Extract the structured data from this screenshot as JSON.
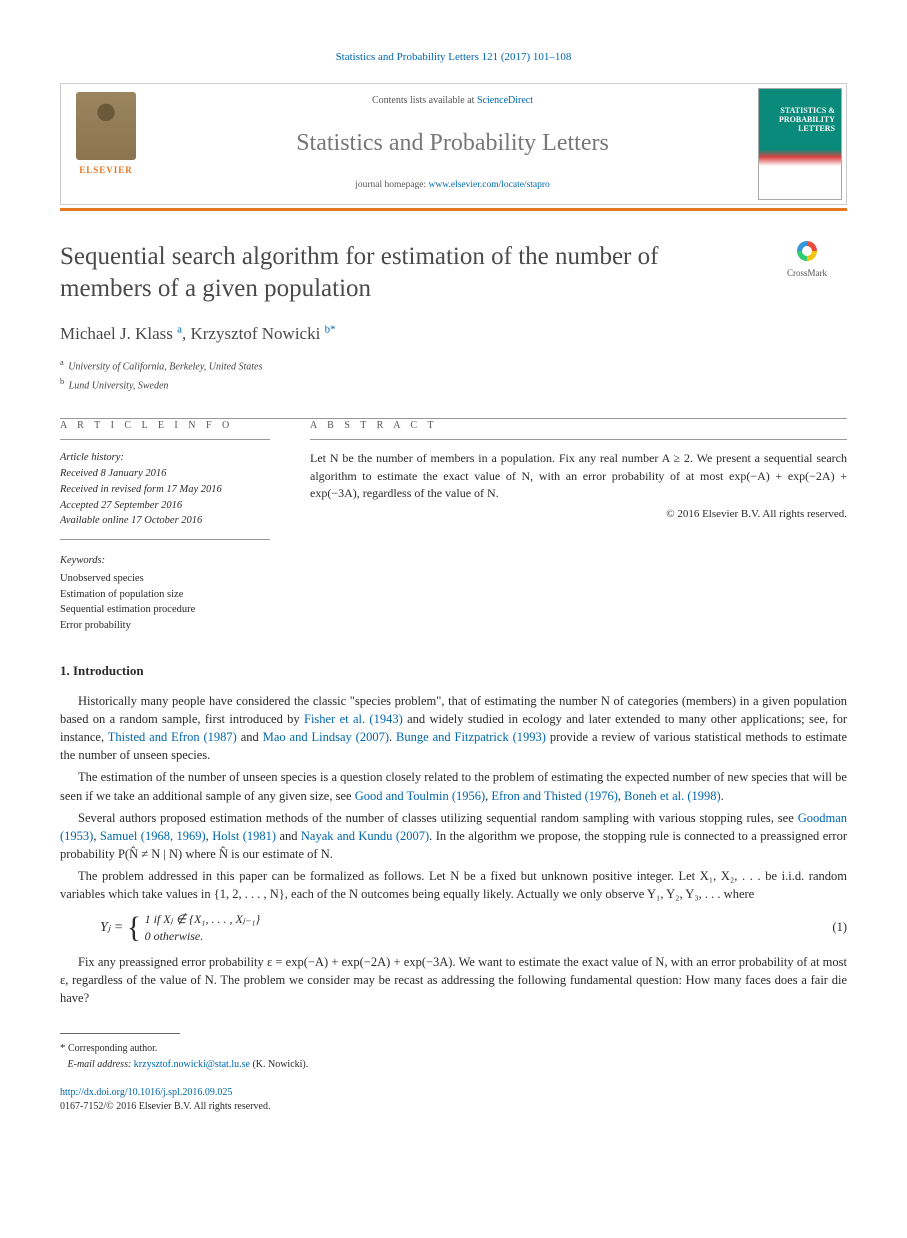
{
  "citation": "Statistics and Probability Letters 121 (2017) 101–108",
  "masthead": {
    "contents_prefix": "Contents lists available at ",
    "contents_link": "ScienceDirect",
    "journal_name": "Statistics and Probability Letters",
    "homepage_prefix": "journal homepage: ",
    "homepage_link": "www.elsevier.com/locate/stapro",
    "publisher": "ELSEVIER",
    "cover_title": "STATISTICS & PROBABILITY LETTERS"
  },
  "title": "Sequential search algorithm for estimation of the number of members of a given population",
  "crossmark_label": "CrossMark",
  "authors": {
    "a1_name": "Michael J. Klass",
    "a1_aff": "a",
    "a2_name": "Krzysztof Nowicki",
    "a2_aff": "b",
    "corr_mark": "*"
  },
  "affiliations": {
    "a": "University of California, Berkeley, United States",
    "b": "Lund University, Sweden"
  },
  "info": {
    "heading": "A R T I C L E   I N F O",
    "history_label": "Article history:",
    "h1": "Received 8 January 2016",
    "h2": "Received in revised form 17 May 2016",
    "h3": "Accepted 27 September 2016",
    "h4": "Available online 17 October 2016",
    "keywords_label": "Keywords:",
    "k1": "Unobserved species",
    "k2": "Estimation of population size",
    "k3": "Sequential estimation procedure",
    "k4": "Error probability"
  },
  "abstract": {
    "heading": "A B S T R A C T",
    "text": "Let N be the number of members in a population. Fix any real number A ≥ 2. We present a sequential search algorithm to estimate the exact value of N, with an error probability of at most exp(−A) + exp(−2A) + exp(−3A), regardless of the value of N.",
    "copyright": "© 2016 Elsevier B.V. All rights reserved."
  },
  "section1_heading": "1. Introduction",
  "para1_a": "Historically many people have considered the classic \"species problem\", that of estimating the number N of categories (members) in a given population based on a random sample, first introduced by ",
  "para1_ref1": "Fisher et al. (1943)",
  "para1_b": " and widely studied in ecology and later extended to many other applications; see, for instance, ",
  "para1_ref2": "Thisted and Efron (1987)",
  "para1_c": " and ",
  "para1_ref3": "Mao and Lindsay (2007)",
  "para1_d": ". ",
  "para1_ref4": "Bunge and Fitzpatrick (1993)",
  "para1_e": " provide a review of various statistical methods to estimate the number of unseen species.",
  "para2_a": "The estimation of the number of unseen species is a question closely related to the problem of estimating the expected number of new species that will be seen if we take an additional sample of any given size, see ",
  "para2_ref1": "Good and Toulmin (1956)",
  "para2_b": ", ",
  "para2_ref2": "Efron and Thisted (1976)",
  "para2_c": ", ",
  "para2_ref3": "Boneh et al. (1998)",
  "para2_d": ".",
  "para3_a": "Several authors proposed estimation methods of the number of classes utilizing sequential random sampling with various stopping rules, see ",
  "para3_ref1": "Goodman (1953)",
  "para3_b": ", ",
  "para3_ref2": "Samuel (1968, 1969)",
  "para3_c": ", ",
  "para3_ref3": "Holst (1981)",
  "para3_d": " and ",
  "para3_ref4": "Nayak and Kundu (2007)",
  "para3_e": ". In the algorithm we propose, the stopping rule is connected to a preassigned error probability P(N̂ ≠ N | N) where N̂ is our estimate of N.",
  "para4": "The problem addressed in this paper can be formalized as follows. Let N be a fixed but unknown positive integer. Let X₁, X₂, . . . be i.i.d. random variables which take values in {1, 2, . . . , N}, each of the N outcomes being equally likely. Actually we only observe Y₁, Y₂, Y₃, . . . where",
  "eq1_lhs": "Yⱼ =",
  "eq1_case1": "1    if Xⱼ ∉ {X₁, . . . , Xⱼ₋₁}",
  "eq1_case2": "0    otherwise.",
  "eq1_num": "(1)",
  "para5": "Fix any preassigned error probability ε = exp(−A) + exp(−2A) + exp(−3A). We want to estimate the exact value of N, with an error probability of at most ε, regardless of the value of N. The problem we consider may be recast as addressing the following fundamental question: How many faces does a fair die have?",
  "footnote": {
    "corr_label": "Corresponding author.",
    "email_label": "E-mail address: ",
    "email": "krzysztof.nowicki@stat.lu.se",
    "email_suffix": " (K. Nowicki)."
  },
  "doi": {
    "link": "http://dx.doi.org/10.1016/j.spl.2016.09.025",
    "issn_line": "0167-7152/© 2016 Elsevier B.V. All rights reserved."
  },
  "colors": {
    "link": "#0066aa",
    "elsevier_orange": "#e87722",
    "text": "#2a2a2a",
    "heading_gray": "#555"
  }
}
